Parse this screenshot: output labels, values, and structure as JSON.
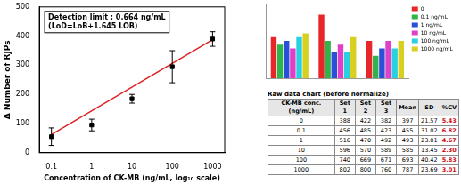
{
  "chart_data": [
    {
      "type": "scatter",
      "x_label": "Concentration of CK-MB (ng/mL, log₁₀ scale)",
      "y_label": "Δ Number of RJPs",
      "annotations": [
        "Detection limit : 0.664 ng/mL",
        "(LoD=LoB+1.645 LOB)"
      ],
      "log": "x",
      "grid": false,
      "xlim": [
        0.05,
        2000
      ],
      "xticks": [
        0.1,
        1,
        10,
        100,
        1000
      ],
      "ylim": [
        0,
        500
      ],
      "yticks": [
        0,
        100,
        200,
        300,
        400,
        500
      ],
      "series": [
        {
          "type": "scatter",
          "color": "#000000",
          "marker": "square",
          "x": [
            0.1,
            1,
            10,
            100,
            1000
          ],
          "values": [
            55,
            95,
            185,
            295,
            390
          ],
          "errors": [
            30,
            20,
            15,
            55,
            25
          ]
        },
        {
          "type": "line",
          "color": "#e02020",
          "marker": "none",
          "x": [
            0.1,
            1000
          ],
          "values": [
            62,
            388
          ]
        }
      ]
    },
    {
      "type": "bar",
      "categories": [
        null,
        null,
        null
      ],
      "tick_labels": false,
      "grid": false,
      "legend": "right",
      "ylim": [
        0,
        1
      ],
      "series": [
        {
          "name": "0",
          "color": "#e8262a",
          "values": [
            0.55,
            0.85,
            0.5
          ]
        },
        {
          "name": "0.1 ng/mL",
          "color": "#2fb34a",
          "values": [
            0.45,
            0.5,
            0.3
          ]
        },
        {
          "name": "1 ng/mL",
          "color": "#2a4fd8",
          "values": [
            0.5,
            0.35,
            0.4
          ]
        },
        {
          "name": "10 ng/mL",
          "color": "#e040c8",
          "values": [
            0.4,
            0.45,
            0.5
          ]
        },
        {
          "name": "100 ng/mL",
          "color": "#2ad0e0",
          "values": [
            0.55,
            0.35,
            0.4
          ]
        },
        {
          "name": "1000 ng/mL",
          "color": "#d8d020",
          "values": [
            0.6,
            0.55,
            0.5
          ]
        }
      ]
    }
  ],
  "table": {
    "title": "Raw data chart (before normalize)",
    "header": [
      "CK-MB conc. (ng/mL)",
      "Set 1",
      "Set 2",
      "Set 3",
      "Mean",
      "SD",
      "%CV"
    ],
    "rows": [
      [
        "0",
        "388",
        "422",
        "382",
        "397",
        "21.57",
        "5.43"
      ],
      [
        "0.1",
        "456",
        "485",
        "423",
        "455",
        "31.02",
        "6.82"
      ],
      [
        "1",
        "516",
        "470",
        "492",
        "493",
        "23.01",
        "4.67"
      ],
      [
        "10",
        "596",
        "570",
        "589",
        "585",
        "13.45",
        "2.30"
      ],
      [
        "100",
        "740",
        "669",
        "671",
        "693",
        "40.42",
        "5.83"
      ],
      [
        "1000",
        "802",
        "800",
        "760",
        "787",
        "23.69",
        "3.01"
      ]
    ]
  }
}
